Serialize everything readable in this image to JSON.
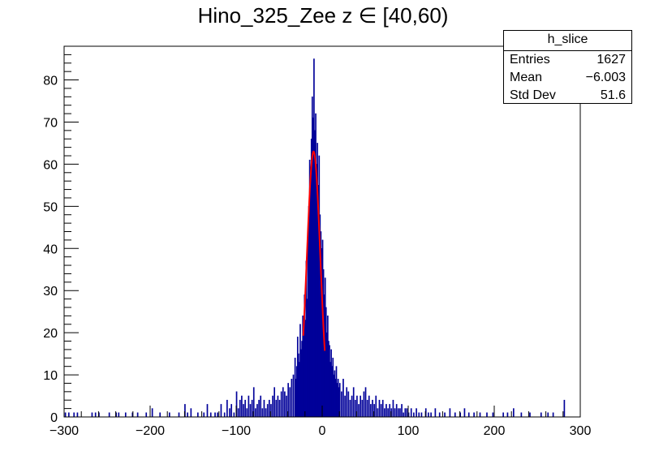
{
  "chart_data": {
    "type": "bar",
    "title_prefix": "Hino_325_Zee z",
    "title_symbol": "∈",
    "title_suffix": " [40,60)",
    "xlim": [
      -300,
      300
    ],
    "ylim": [
      0,
      88
    ],
    "x_ticks": [
      -300,
      -200,
      -100,
      0,
      100,
      200,
      300
    ],
    "x_tick_labels": [
      "−300",
      "−200",
      "−100",
      "0",
      "100",
      "200",
      "300"
    ],
    "y_ticks": [
      0,
      10,
      20,
      30,
      40,
      50,
      60,
      70,
      80
    ],
    "y_tick_labels": [
      "0",
      "10",
      "20",
      "30",
      "40",
      "50",
      "60",
      "70",
      "80"
    ],
    "bin_width": 1,
    "histogram_color": "#000099",
    "fit_color": "#ff0000",
    "fit": {
      "type": "gaus",
      "range": [
        -22,
        3
      ],
      "constant": 63,
      "mean": -10,
      "sigma": 7.8
    },
    "stats_box": {
      "name": "h_slice",
      "rows": [
        {
          "label": "Entries",
          "value": "1627"
        },
        {
          "label": "Mean",
          "value": "−6.003"
        },
        {
          "label": "Std Dev",
          "value": "51.6"
        }
      ]
    },
    "bins": [
      [
        -299,
        1
      ],
      [
        -295,
        1
      ],
      [
        -289,
        1
      ],
      [
        -285,
        1
      ],
      [
        -268,
        1
      ],
      [
        -264,
        1
      ],
      [
        -260,
        1
      ],
      [
        -248,
        1
      ],
      [
        -240,
        1
      ],
      [
        -237,
        1
      ],
      [
        -229,
        1
      ],
      [
        -221,
        1
      ],
      [
        -215,
        1
      ],
      [
        -205,
        1
      ],
      [
        -198,
        2
      ],
      [
        -189,
        1
      ],
      [
        -178,
        1
      ],
      [
        -167,
        1
      ],
      [
        -160,
        3
      ],
      [
        -157,
        1
      ],
      [
        -153,
        2
      ],
      [
        -145,
        1
      ],
      [
        -138,
        1
      ],
      [
        -134,
        3
      ],
      [
        -130,
        1
      ],
      [
        -125,
        1
      ],
      [
        -122,
        1
      ],
      [
        -118,
        3
      ],
      [
        -114,
        1
      ],
      [
        -111,
        4
      ],
      [
        -108,
        2
      ],
      [
        -106,
        3
      ],
      [
        -103,
        1
      ],
      [
        -100,
        6
      ],
      [
        -98,
        2
      ],
      [
        -96,
        4
      ],
      [
        -94,
        5
      ],
      [
        -92,
        3
      ],
      [
        -90,
        4
      ],
      [
        -88,
        2
      ],
      [
        -86,
        5
      ],
      [
        -84,
        3
      ],
      [
        -82,
        4
      ],
      [
        -80,
        7
      ],
      [
        -78,
        2
      ],
      [
        -76,
        3
      ],
      [
        -74,
        4
      ],
      [
        -72,
        5
      ],
      [
        -70,
        2
      ],
      [
        -68,
        4
      ],
      [
        -66,
        2
      ],
      [
        -64,
        3
      ],
      [
        -62,
        4
      ],
      [
        -60,
        3
      ],
      [
        -58,
        5
      ],
      [
        -56,
        7
      ],
      [
        -54,
        4
      ],
      [
        -52,
        5
      ],
      [
        -50,
        4
      ],
      [
        -48,
        6
      ],
      [
        -46,
        7
      ],
      [
        -44,
        6
      ],
      [
        -42,
        5
      ],
      [
        -40,
        8
      ],
      [
        -38,
        7
      ],
      [
        -36,
        9
      ],
      [
        -34,
        10
      ],
      [
        -32,
        14
      ],
      [
        -31,
        9
      ],
      [
        -30,
        12
      ],
      [
        -29,
        19
      ],
      [
        -28,
        15
      ],
      [
        -27,
        13
      ],
      [
        -26,
        22
      ],
      [
        -25,
        16
      ],
      [
        -24,
        18
      ],
      [
        -23,
        24
      ],
      [
        -22,
        20
      ],
      [
        -21,
        29
      ],
      [
        -20,
        23
      ],
      [
        -19,
        37
      ],
      [
        -18,
        28
      ],
      [
        -17,
        44
      ],
      [
        -16,
        50
      ],
      [
        -15,
        61
      ],
      [
        -14,
        57
      ],
      [
        -13,
        66
      ],
      [
        -12,
        76
      ],
      [
        -11,
        71
      ],
      [
        -10,
        85
      ],
      [
        -9,
        68
      ],
      [
        -8,
        72
      ],
      [
        -7,
        60
      ],
      [
        -6,
        65
      ],
      [
        -5,
        55
      ],
      [
        -4,
        62
      ],
      [
        -3,
        48
      ],
      [
        -2,
        44
      ],
      [
        -1,
        40
      ],
      [
        0,
        42
      ],
      [
        1,
        35
      ],
      [
        2,
        29
      ],
      [
        3,
        33
      ],
      [
        4,
        26
      ],
      [
        5,
        20
      ],
      [
        6,
        24
      ],
      [
        7,
        18
      ],
      [
        8,
        17
      ],
      [
        9,
        13
      ],
      [
        10,
        16
      ],
      [
        11,
        12
      ],
      [
        12,
        14
      ],
      [
        13,
        10
      ],
      [
        14,
        11
      ],
      [
        15,
        9
      ],
      [
        16,
        12
      ],
      [
        17,
        8
      ],
      [
        18,
        9
      ],
      [
        19,
        7
      ],
      [
        20,
        8
      ],
      [
        22,
        6
      ],
      [
        24,
        9
      ],
      [
        26,
        5
      ],
      [
        28,
        7
      ],
      [
        30,
        6
      ],
      [
        32,
        4
      ],
      [
        34,
        5
      ],
      [
        36,
        7
      ],
      [
        38,
        4
      ],
      [
        40,
        5
      ],
      [
        42,
        3
      ],
      [
        44,
        5
      ],
      [
        46,
        4
      ],
      [
        48,
        6
      ],
      [
        50,
        7
      ],
      [
        52,
        4
      ],
      [
        54,
        5
      ],
      [
        56,
        3
      ],
      [
        58,
        4
      ],
      [
        60,
        3
      ],
      [
        62,
        5
      ],
      [
        64,
        2
      ],
      [
        66,
        4
      ],
      [
        68,
        3
      ],
      [
        70,
        4
      ],
      [
        72,
        2
      ],
      [
        74,
        3
      ],
      [
        76,
        2
      ],
      [
        78,
        3
      ],
      [
        80,
        2
      ],
      [
        82,
        4
      ],
      [
        84,
        2
      ],
      [
        86,
        3
      ],
      [
        88,
        2
      ],
      [
        90,
        2
      ],
      [
        92,
        3
      ],
      [
        94,
        1
      ],
      [
        96,
        2
      ],
      [
        98,
        2
      ],
      [
        100,
        1
      ],
      [
        103,
        2
      ],
      [
        106,
        1
      ],
      [
        109,
        2
      ],
      [
        112,
        1
      ],
      [
        115,
        1
      ],
      [
        120,
        2
      ],
      [
        123,
        1
      ],
      [
        126,
        1
      ],
      [
        131,
        2
      ],
      [
        136,
        1
      ],
      [
        142,
        1
      ],
      [
        148,
        2
      ],
      [
        154,
        1
      ],
      [
        160,
        1
      ],
      [
        165,
        2
      ],
      [
        170,
        1
      ],
      [
        176,
        1
      ],
      [
        183,
        1
      ],
      [
        191,
        1
      ],
      [
        198,
        1
      ],
      [
        210,
        1
      ],
      [
        215,
        1
      ],
      [
        222,
        2
      ],
      [
        231,
        1
      ],
      [
        241,
        1
      ],
      [
        254,
        1
      ],
      [
        262,
        1
      ],
      [
        268,
        1
      ],
      [
        281,
        4
      ]
    ]
  }
}
